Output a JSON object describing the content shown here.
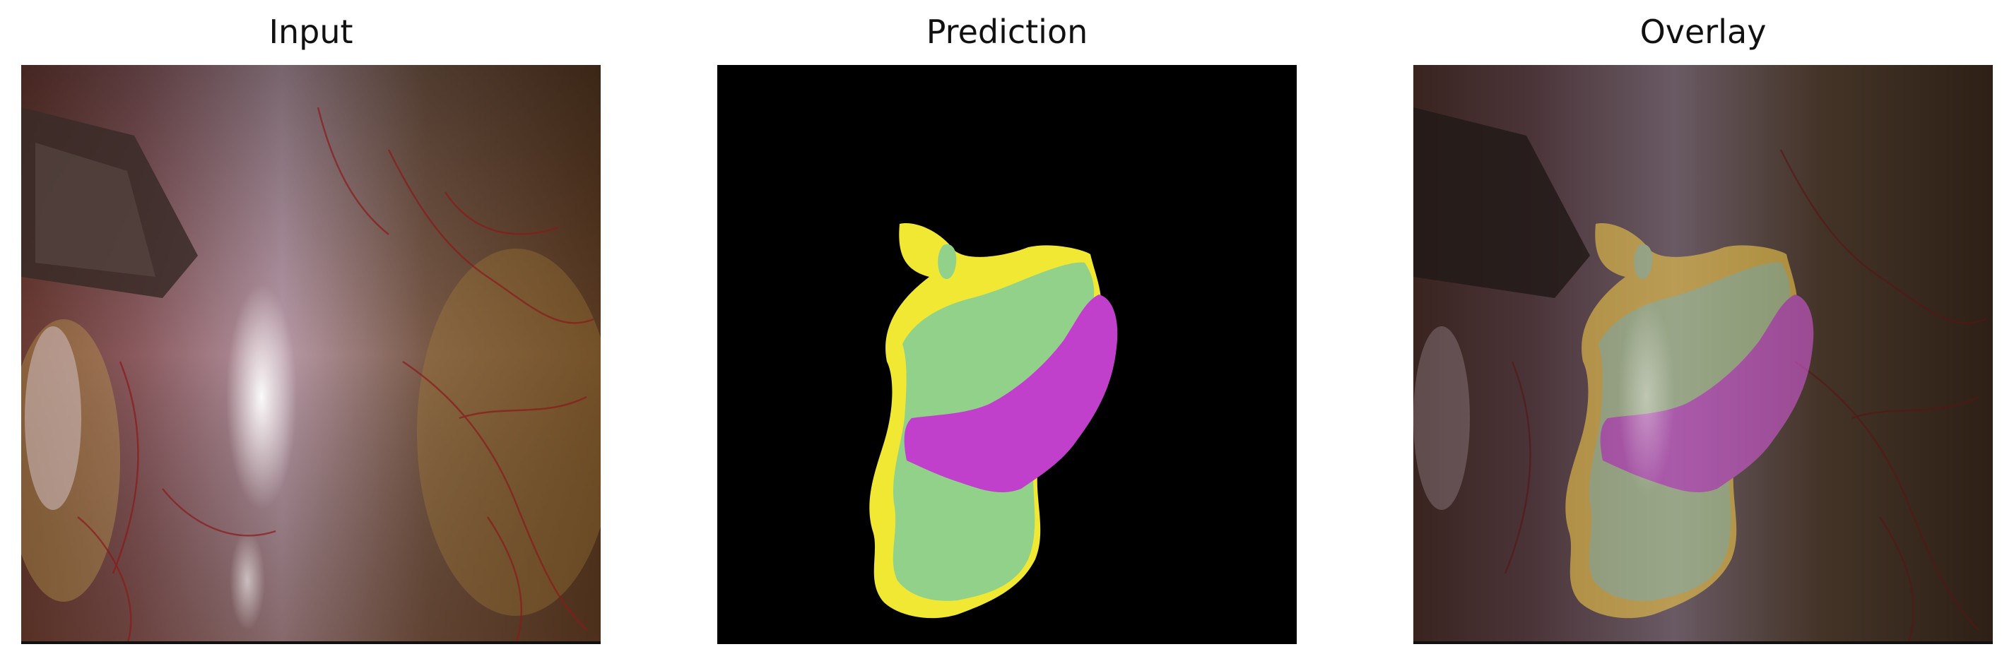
{
  "panels": {
    "input": {
      "title": "Input"
    },
    "prediction": {
      "title": "Prediction"
    },
    "overlay": {
      "title": "Overlay"
    }
  },
  "colors": {
    "background_mask": "#000000",
    "class_yellow": "#f0e832",
    "class_green": "#92d18a",
    "class_magenta": "#c040cc"
  }
}
